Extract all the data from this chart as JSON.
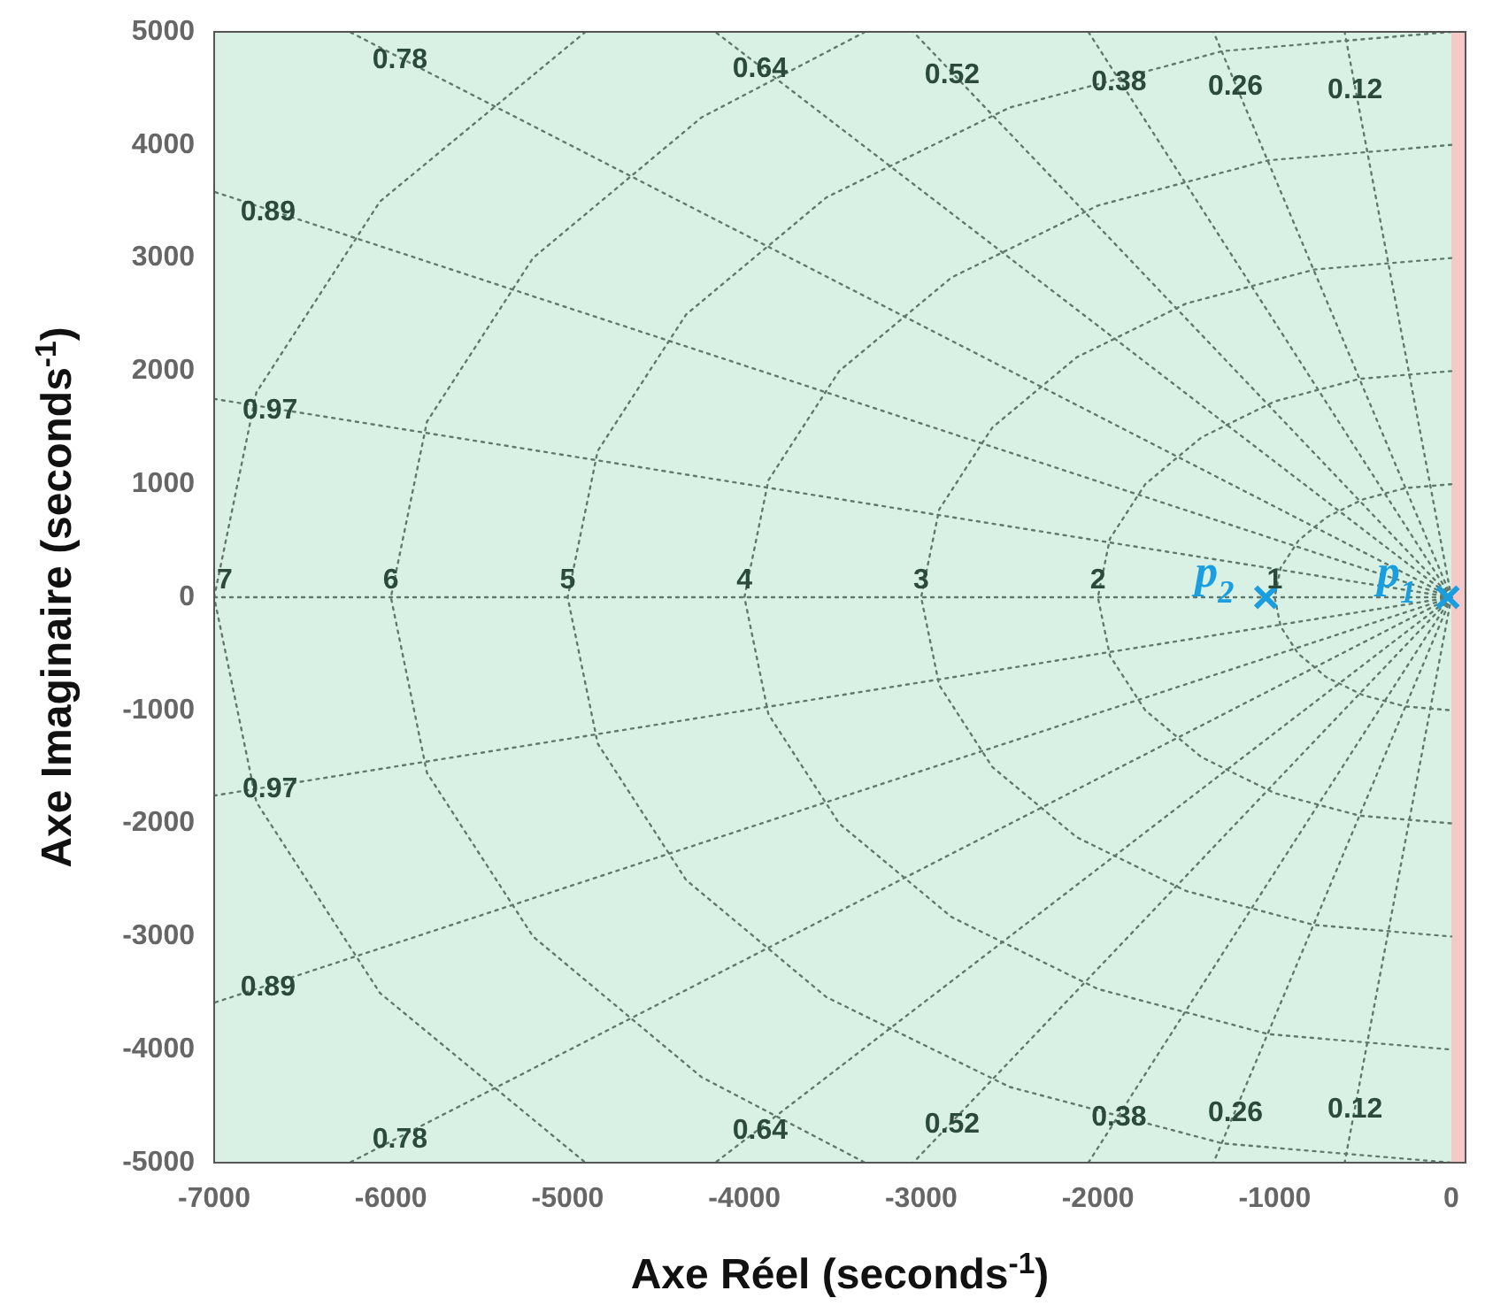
{
  "chart_data": {
    "type": "scatter",
    "xlabel": "Axe Réel (seconds$^{-1}$)",
    "ylabel": "Axe Imaginaire (seconds$^{-1}$)",
    "series": [
      {
        "name": "p$_{1}$",
        "color": "#1a9ee0",
        "x": [
          -20
        ],
        "values": [
          0
        ]
      },
      {
        "name": "p$_{2}$",
        "color": "#1a9ee0",
        "x": [
          -1050
        ],
        "values": [
          0
        ]
      },
      {
        "type": "line",
        "color": "#5f7a6c",
        "marker": "none",
        "line_style": "dotted",
        "x": [
          -7000,
          0
        ],
        "values": [
          0,
          0
        ]
      },
      {
        "type": "line",
        "name": "1",
        "color": "#5f7a6c",
        "marker": "none",
        "line_style": "dotted",
        "x": [
          0,
          -259,
          -500,
          -707,
          -866,
          -966,
          -1000,
          -966,
          -866,
          -707,
          -500,
          -259,
          0
        ],
        "values": [
          1000,
          966,
          866,
          707,
          500,
          259,
          0,
          -259,
          -500,
          -707,
          -866,
          -966,
          -1000
        ]
      },
      {
        "type": "line",
        "name": "2",
        "color": "#5f7a6c",
        "marker": "none",
        "line_style": "dotted",
        "x": [
          0,
          -518,
          -1000,
          -1414,
          -1732,
          -1932,
          -2000,
          -1932,
          -1732,
          -1414,
          -1000,
          -518,
          0
        ],
        "values": [
          2000,
          1932,
          1732,
          1414,
          1000,
          518,
          0,
          -518,
          -1000,
          -1414,
          -1732,
          -1932,
          -2000
        ]
      },
      {
        "type": "line",
        "name": "3",
        "color": "#5f7a6c",
        "marker": "none",
        "line_style": "dotted",
        "x": [
          0,
          -776,
          -1500,
          -2121,
          -2598,
          -2898,
          -3000,
          -2898,
          -2598,
          -2121,
          -1500,
          -776,
          0
        ],
        "values": [
          3000,
          2898,
          2598,
          2121,
          1500,
          776,
          0,
          -776,
          -1500,
          -2121,
          -2598,
          -2898,
          -3000
        ]
      },
      {
        "type": "line",
        "name": "4",
        "color": "#5f7a6c",
        "marker": "none",
        "line_style": "dotted",
        "x": [
          0,
          -1035,
          -2000,
          -2828,
          -3464,
          -3864,
          -4000,
          -3864,
          -3464,
          -2828,
          -2000,
          -1035,
          0
        ],
        "values": [
          4000,
          3864,
          3464,
          2828,
          2000,
          1035,
          0,
          -1035,
          -2000,
          -2828,
          -3464,
          -3864,
          -4000
        ]
      },
      {
        "type": "line",
        "name": "5",
        "color": "#5f7a6c",
        "marker": "none",
        "line_style": "dotted",
        "x": [
          0,
          -1294,
          -2500,
          -3536,
          -4330,
          -4830,
          -5000,
          -4830,
          -4330,
          -3536,
          -2500,
          -1294,
          0
        ],
        "values": [
          5000,
          4830,
          4330,
          3536,
          2500,
          1294,
          0,
          -1294,
          -2500,
          -3536,
          -4330,
          -4830,
          -5000
        ]
      },
      {
        "type": "line",
        "name": "6",
        "color": "#5f7a6c",
        "marker": "none",
        "line_style": "dotted",
        "x": [
          -3317,
          -4243,
          -5196,
          -5796,
          -6000,
          -5796,
          -5196,
          -4243,
          -3317
        ],
        "values": [
          5000,
          4243,
          3000,
          1553,
          0,
          -1553,
          -3000,
          -4243,
          -5000
        ]
      },
      {
        "type": "line",
        "name": "7",
        "color": "#5f7a6c",
        "marker": "none",
        "line_style": "dotted",
        "x": [
          -4899,
          -6062,
          -6761,
          -7000,
          -6761,
          -6062,
          -4899
        ],
        "values": [
          5000,
          3500,
          1812,
          0,
          -1812,
          -3500,
          -5000
        ]
      },
      {
        "type": "line",
        "name": "0.78",
        "color": "#5f7a6c",
        "marker": "none",
        "line_style": "dotted",
        "x": [
          0,
          -6234
        ],
        "values": [
          0,
          5000
        ]
      },
      {
        "type": "line",
        "name": "0.64",
        "color": "#5f7a6c",
        "marker": "none",
        "line_style": "dotted",
        "x": [
          0,
          -4165
        ],
        "values": [
          0,
          5000
        ]
      },
      {
        "type": "line",
        "name": "0.52",
        "color": "#5f7a6c",
        "marker": "none",
        "line_style": "dotted",
        "x": [
          0,
          -3045
        ],
        "values": [
          0,
          5000
        ]
      },
      {
        "type": "line",
        "name": "0.38",
        "color": "#5f7a6c",
        "marker": "none",
        "line_style": "dotted",
        "x": [
          0,
          -2054
        ],
        "values": [
          0,
          5000
        ]
      },
      {
        "type": "line",
        "name": "0.26",
        "color": "#5f7a6c",
        "marker": "none",
        "line_style": "dotted",
        "x": [
          0,
          -1346
        ],
        "values": [
          0,
          5000
        ]
      },
      {
        "type": "line",
        "name": "0.12",
        "color": "#5f7a6c",
        "marker": "none",
        "line_style": "dotted",
        "x": [
          0,
          -604
        ],
        "values": [
          0,
          5000
        ]
      },
      {
        "type": "line",
        "name": "0.89",
        "color": "#5f7a6c",
        "marker": "none",
        "line_style": "dotted",
        "x": [
          0,
          -7000
        ],
        "values": [
          0,
          3586
        ]
      },
      {
        "type": "line",
        "name": "0.97",
        "color": "#5f7a6c",
        "marker": "none",
        "line_style": "dotted",
        "x": [
          0,
          -7000
        ],
        "values": [
          0,
          1754
        ]
      },
      {
        "type": "line",
        "name": "0.97",
        "color": "#5f7a6c",
        "marker": "none",
        "line_style": "dotted",
        "x": [
          0,
          -7000
        ],
        "values": [
          0,
          -1754
        ]
      },
      {
        "type": "line",
        "name": "0.89",
        "color": "#5f7a6c",
        "marker": "none",
        "line_style": "dotted",
        "x": [
          0,
          -7000
        ],
        "values": [
          0,
          -3586
        ]
      },
      {
        "type": "line",
        "name": "0.78",
        "color": "#5f7a6c",
        "marker": "none",
        "line_style": "dotted",
        "x": [
          0,
          -6234
        ],
        "values": [
          0,
          -5000
        ]
      },
      {
        "type": "line",
        "name": "0.64",
        "color": "#5f7a6c",
        "marker": "none",
        "line_style": "dotted",
        "x": [
          0,
          -4165
        ],
        "values": [
          0,
          -5000
        ]
      },
      {
        "type": "line",
        "name": "0.52",
        "color": "#5f7a6c",
        "marker": "none",
        "line_style": "dotted",
        "x": [
          0,
          -3045
        ],
        "values": [
          0,
          -5000
        ]
      },
      {
        "type": "line",
        "name": "0.38",
        "color": "#5f7a6c",
        "marker": "none",
        "line_style": "dotted",
        "x": [
          0,
          -2054
        ],
        "values": [
          0,
          -5000
        ]
      },
      {
        "type": "line",
        "name": "0.26",
        "color": "#5f7a6c",
        "marker": "none",
        "line_style": "dotted",
        "x": [
          0,
          -1346
        ],
        "values": [
          0,
          -5000
        ]
      },
      {
        "type": "line",
        "name": "0.12",
        "color": "#5f7a6c",
        "marker": "none",
        "line_style": "dotted",
        "x": [
          0,
          -604
        ],
        "values": [
          0,
          -5000
        ]
      }
    ],
    "xlim": [
      -7000,
      80
    ],
    "xticks": [
      -7000,
      -6000,
      -5000,
      -4000,
      -3000,
      -2000,
      -1000,
      0
    ],
    "ylim": [
      -5000,
      5000
    ],
    "yticks": [
      -5000,
      -4000,
      -3000,
      -2000,
      -1000,
      0,
      1000,
      2000,
      3000,
      4000,
      5000
    ],
    "bands": [
      {
        "axis": "x",
        "from": -7000,
        "to": 0,
        "color": "#d8f1e4"
      },
      {
        "axis": "x",
        "from": 0,
        "to": 80,
        "color": "#f6c9c9"
      }
    ],
    "marker": "cross",
    "legend": false
  }
}
